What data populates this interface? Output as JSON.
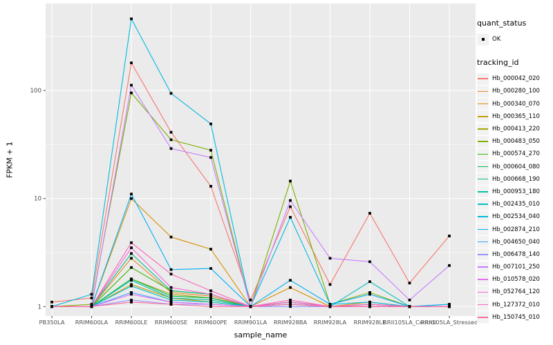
{
  "style": {
    "panel_bg": "#EBEBEB",
    "grid_color": "#FFFFFF",
    "tick_label_color": "#4D4D4D",
    "text_color": "#000000",
    "legend_key_bg": "#F2F2F2",
    "point_color": "#000000"
  },
  "legend": {
    "quant_status_title": "quant_status",
    "quant_status_items": [
      {
        "label": "OK",
        "marker": "black-square"
      }
    ],
    "tracking_id_title": "tracking_id"
  },
  "chart_data": {
    "type": "line",
    "title": "",
    "xlabel": "sample_name",
    "ylabel": "FPKM + 1",
    "y_scale": "log10",
    "y_ticks": [
      1,
      10,
      100
    ],
    "y_minor_ticks": [
      3.162,
      31.623,
      316.228
    ],
    "y_range": [
      0.82,
      640
    ],
    "grid": true,
    "legend_position": "right",
    "point_shape": "filled-square",
    "categories": [
      "PB350LA",
      "RRIM600LA",
      "RRIM600LE",
      "RRIM600SE",
      "RRIM600PE",
      "RRIM901LA",
      "RRIM928BA",
      "RRIM928LA",
      "RRIM928LE",
      "RRII105LA_Control",
      "RRII105LA_Stressed"
    ],
    "series": [
      {
        "id": "Hb_000042_020",
        "color": "#F8766D",
        "values": [
          1.1,
          1.2,
          180,
          41,
          13,
          1.15,
          8.4,
          1.6,
          7.3,
          1.65,
          4.5
        ]
      },
      {
        "id": "Hb_000280_100",
        "color": "#E88526",
        "values": [
          1,
          1,
          2.8,
          1.35,
          1.25,
          1,
          1.1,
          1,
          1.05,
          1,
          1
        ]
      },
      {
        "id": "Hb_000340_070",
        "color": "#D89000",
        "values": [
          1,
          1,
          10,
          4.4,
          3.4,
          1,
          1.5,
          1,
          1.1,
          1,
          1
        ]
      },
      {
        "id": "Hb_000365_110",
        "color": "#C09B00",
        "values": [
          1,
          1,
          1.6,
          1.2,
          1.1,
          1,
          1.05,
          1,
          1,
          1,
          1
        ]
      },
      {
        "id": "Hb_000413_220",
        "color": "#A3A500",
        "values": [
          1,
          1,
          1.8,
          1.3,
          1.2,
          1,
          1.1,
          1,
          1.05,
          1,
          1
        ]
      },
      {
        "id": "Hb_000483_050",
        "color": "#7CAE00",
        "values": [
          1,
          1.05,
          95,
          35,
          28,
          1,
          14.5,
          1.05,
          1.35,
          1,
          1
        ]
      },
      {
        "id": "Hb_000574_270",
        "color": "#39B600",
        "values": [
          1,
          1,
          2.3,
          1.4,
          1.3,
          1,
          1.1,
          1,
          1.05,
          1,
          1
        ]
      },
      {
        "id": "Hb_000604_080",
        "color": "#00BB4E",
        "values": [
          1,
          1,
          1.8,
          1.25,
          1.2,
          1,
          1.05,
          1,
          1,
          1,
          1
        ]
      },
      {
        "id": "Hb_000668_190",
        "color": "#00BF7D",
        "values": [
          1,
          1,
          3.1,
          1.4,
          1.3,
          1,
          1.1,
          1,
          1.05,
          1,
          1
        ]
      },
      {
        "id": "Hb_000953_180",
        "color": "#00C1A3",
        "values": [
          1,
          1,
          1.75,
          1.2,
          1.15,
          1,
          1.05,
          1,
          1,
          1,
          1
        ]
      },
      {
        "id": "Hb_002435_010",
        "color": "#00BFC4",
        "values": [
          1,
          1,
          1.55,
          1.15,
          1.1,
          1,
          1.05,
          1,
          1.7,
          1,
          1.05
        ]
      },
      {
        "id": "Hb_002534_040",
        "color": "#00BAE0",
        "values": [
          1,
          1.3,
          460,
          94,
          49,
          1,
          6.7,
          1.05,
          1.1,
          1,
          1
        ]
      },
      {
        "id": "Hb_002874_210",
        "color": "#00B0F6",
        "values": [
          1,
          1,
          11,
          2.2,
          2.25,
          1,
          1.75,
          1.05,
          1.3,
          1,
          1.05
        ]
      },
      {
        "id": "Hb_004650_040",
        "color": "#35A2FF",
        "values": [
          1,
          1,
          1.35,
          1.1,
          1.05,
          1,
          1.05,
          1,
          1.05,
          1,
          1
        ]
      },
      {
        "id": "Hb_006478_140",
        "color": "#9590FF",
        "values": [
          1,
          1,
          1.15,
          1.05,
          1.05,
          1,
          1,
          1,
          1,
          1,
          1
        ]
      },
      {
        "id": "Hb_007101_250",
        "color": "#C77CFF",
        "values": [
          1,
          1,
          112,
          29,
          24,
          1,
          9.6,
          2.8,
          2.6,
          1.15,
          2.4
        ]
      },
      {
        "id": "Hb_010578_020",
        "color": "#E76BF3",
        "values": [
          1,
          1,
          1.3,
          1.1,
          1.05,
          1,
          1.05,
          1,
          1,
          1,
          1
        ]
      },
      {
        "id": "Hb_052764_120",
        "color": "#FA62DB",
        "values": [
          1,
          1,
          3.5,
          1.5,
          1.3,
          1,
          1.1,
          1,
          1.05,
          1,
          1
        ]
      },
      {
        "id": "Hb_127372_010",
        "color": "#FF62BC",
        "values": [
          1,
          1,
          3.9,
          2.0,
          1.4,
          1,
          1.15,
          1,
          1.05,
          1,
          1
        ]
      },
      {
        "id": "Hb_150745_010",
        "color": "#FF6A98",
        "values": [
          1,
          1,
          1.1,
          1.05,
          1,
          1,
          1.05,
          1,
          1,
          1,
          1
        ]
      }
    ]
  }
}
